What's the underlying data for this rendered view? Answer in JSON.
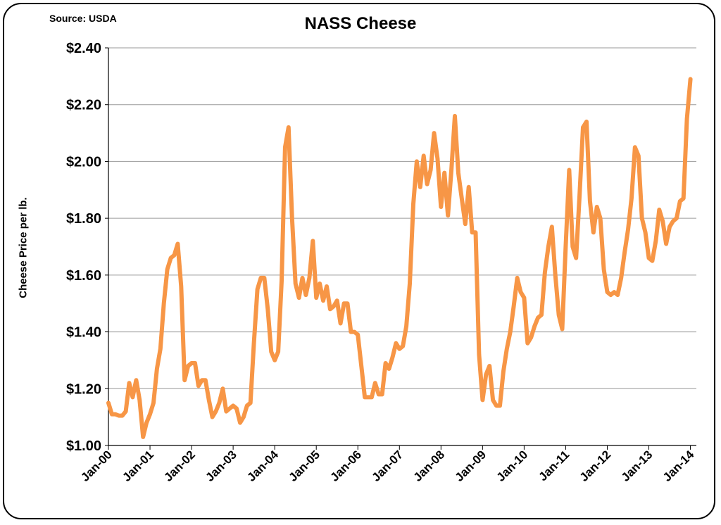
{
  "source_note": "Source: USDA",
  "chart_data": {
    "type": "line",
    "title": "NASS Cheese",
    "xlabel": "",
    "ylabel": "Cheese Price per lb.",
    "ylim": [
      1.0,
      2.4
    ],
    "yticks": [
      1.0,
      1.2,
      1.4,
      1.6,
      1.8,
      2.0,
      2.2,
      2.4
    ],
    "ytick_labels": [
      "$1.00",
      "$1.20",
      "$1.40",
      "$1.60",
      "$1.80",
      "$2.00",
      "$2.20",
      "$2.40"
    ],
    "xtick_labels": [
      "Jan-00",
      "Jan-01",
      "Jan-02",
      "Jan-03",
      "Jan-04",
      "Jan-05",
      "Jan-06",
      "Jan-07",
      "Jan-08",
      "Jan-09",
      "Jan-10",
      "Jan-11",
      "Jan-12",
      "Jan-13",
      "Jan-14"
    ],
    "grid": true,
    "line_color": "#F79646",
    "series": [
      {
        "x_start": "Jan-00",
        "frequency": "monthly",
        "values": [
          1.15,
          1.11,
          1.11,
          1.105,
          1.105,
          1.12,
          1.22,
          1.17,
          1.23,
          1.16,
          1.03,
          1.08,
          1.11,
          1.15,
          1.27,
          1.34,
          1.5,
          1.62,
          1.66,
          1.67,
          1.71,
          1.56,
          1.23,
          1.28,
          1.29,
          1.29,
          1.21,
          1.23,
          1.23,
          1.16,
          1.1,
          1.12,
          1.15,
          1.2,
          1.12,
          1.13,
          1.14,
          1.13,
          1.08,
          1.1,
          1.14,
          1.15,
          1.36,
          1.55,
          1.59,
          1.59,
          1.48,
          1.33,
          1.3,
          1.33,
          1.58,
          2.05,
          2.12,
          1.8,
          1.57,
          1.52,
          1.59,
          1.53,
          1.59,
          1.72,
          1.52,
          1.57,
          1.51,
          1.56,
          1.48,
          1.49,
          1.51,
          1.43,
          1.5,
          1.5,
          1.4,
          1.4,
          1.39,
          1.28,
          1.17,
          1.17,
          1.17,
          1.22,
          1.18,
          1.18,
          1.29,
          1.27,
          1.31,
          1.36,
          1.34,
          1.35,
          1.42,
          1.57,
          1.85,
          2.0,
          1.91,
          2.02,
          1.92,
          1.97,
          2.1,
          2.01,
          1.84,
          1.96,
          1.81,
          1.97,
          2.16,
          1.96,
          1.87,
          1.78,
          1.91,
          1.75,
          1.75,
          1.32,
          1.16,
          1.25,
          1.28,
          1.16,
          1.14,
          1.14,
          1.26,
          1.34,
          1.4,
          1.49,
          1.59,
          1.54,
          1.52,
          1.36,
          1.38,
          1.42,
          1.45,
          1.46,
          1.61,
          1.7,
          1.77,
          1.6,
          1.46,
          1.41,
          1.7,
          1.97,
          1.7,
          1.66,
          1.88,
          2.12,
          2.14,
          1.86,
          1.75,
          1.84,
          1.8,
          1.62,
          1.54,
          1.53,
          1.54,
          1.53,
          1.59,
          1.68,
          1.76,
          1.87,
          2.05,
          2.02,
          1.8,
          1.75,
          1.66,
          1.65,
          1.72,
          1.83,
          1.79,
          1.71,
          1.77,
          1.79,
          1.8,
          1.86,
          1.87,
          2.15,
          2.29
        ]
      }
    ]
  }
}
